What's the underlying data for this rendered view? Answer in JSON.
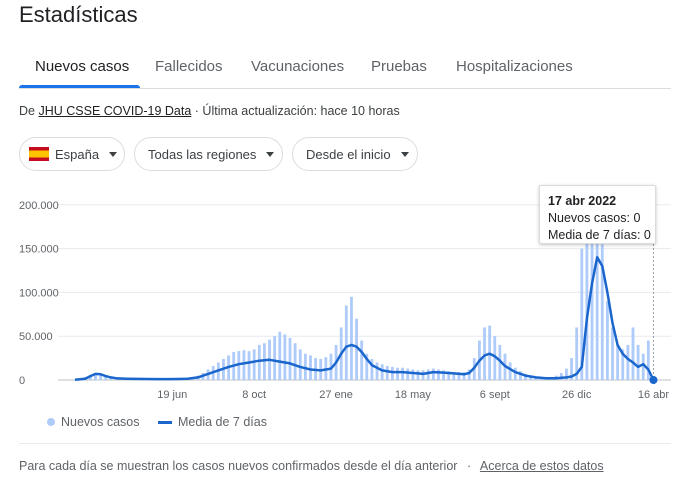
{
  "title": "Estadísticas",
  "tabs": [
    {
      "label": "Nuevos casos",
      "active": true
    },
    {
      "label": "Fallecidos",
      "active": false
    },
    {
      "label": "Vacunaciones",
      "active": false
    },
    {
      "label": "Pruebas",
      "active": false
    },
    {
      "label": "Hospitalizaciones",
      "active": false
    }
  ],
  "source": {
    "prefix": "De",
    "link": "JHU CSSE COVID-19 Data",
    "suffix": "· Última actualización: hace 10 horas"
  },
  "filters": {
    "country": "España",
    "region": "Todas las regiones",
    "range": "Desde el inicio"
  },
  "tooltip": {
    "date": "17 abr 2022",
    "cases": "Nuevos casos: 0",
    "avg": "Media de 7 días: 0"
  },
  "legend": {
    "bars": "Nuevos casos",
    "line": "Media de 7 días"
  },
  "footer": {
    "text": "Para cada día se muestran los casos nuevos confirmados desde el día anterior",
    "sep": "·",
    "link": "Acerca de estos datos"
  },
  "colors": {
    "bars": "#aecbfa",
    "line": "#1a66cc",
    "accent": "#1a73e8"
  },
  "chart_data": {
    "type": "bar",
    "x_ticks": [
      "19 jun",
      "8 oct",
      "27 ene",
      "18 may",
      "6 sept",
      "26 dic",
      "16 abr"
    ],
    "x_tick_weeks": [
      19,
      35,
      51,
      66,
      82,
      98,
      113
    ],
    "y_ticks": [
      "0",
      "50.000",
      "100.000",
      "150.000",
      "200.000"
    ],
    "y_tick_values": [
      0,
      50000,
      100000,
      150000,
      200000
    ],
    "ylim": [
      0,
      210000
    ],
    "x_range_weeks": [
      0,
      113.3
    ],
    "series": [
      {
        "name": "Nuevos casos",
        "kind": "bar",
        "weeks": [
          0,
          1,
          2,
          3,
          4,
          5,
          6,
          7,
          8,
          9,
          10,
          11,
          12,
          13,
          14,
          15,
          16,
          17,
          18,
          19,
          20,
          21,
          22,
          23,
          24,
          25,
          26,
          27,
          28,
          29,
          30,
          31,
          32,
          33,
          34,
          35,
          36,
          37,
          38,
          39,
          40,
          41,
          42,
          43,
          44,
          45,
          46,
          47,
          48,
          49,
          50,
          51,
          52,
          53,
          54,
          55,
          56,
          57,
          58,
          59,
          60,
          61,
          62,
          63,
          64,
          65,
          66,
          67,
          68,
          69,
          70,
          71,
          72,
          73,
          74,
          75,
          76,
          77,
          78,
          79,
          80,
          81,
          82,
          83,
          84,
          85,
          86,
          87,
          88,
          89,
          90,
          91,
          92,
          93,
          94,
          95,
          96,
          97,
          98,
          99,
          100,
          101,
          102,
          103,
          104,
          105,
          106,
          107,
          108,
          109,
          110,
          111,
          112,
          113
        ],
        "values": [
          0,
          1500,
          3500,
          6000,
          8000,
          6500,
          4500,
          3000,
          2000,
          1600,
          1500,
          1400,
          1300,
          1200,
          1000,
          1100,
          900,
          900,
          1000,
          1000,
          1100,
          1300,
          2000,
          3000,
          5000,
          8000,
          12000,
          16000,
          20000,
          24000,
          28000,
          32000,
          33000,
          34000,
          33000,
          35000,
          40000,
          42000,
          46000,
          50000,
          55000,
          52000,
          48000,
          42000,
          35000,
          30000,
          28000,
          25000,
          24000,
          26000,
          30000,
          40000,
          60000,
          85000,
          95000,
          70000,
          45000,
          30000,
          24000,
          20000,
          18000,
          16000,
          15000,
          14000,
          14000,
          13000,
          12000,
          11000,
          11000,
          12000,
          13000,
          12000,
          11000,
          10000,
          9000,
          9000,
          9000,
          12000,
          25000,
          45000,
          60000,
          62000,
          50000,
          40000,
          30000,
          20000,
          14000,
          10000,
          7000,
          5000,
          4000,
          3500,
          3000,
          3500,
          5000,
          8000,
          13000,
          25000,
          60000,
          150000,
          170000,
          165000,
          160000,
          155000,
          90000,
          60000,
          40000,
          35000,
          40000,
          60000,
          40000,
          30000,
          45000,
          0
        ]
      },
      {
        "name": "Media de 7 días",
        "kind": "line",
        "weeks": [
          0,
          2,
          3,
          4,
          5,
          6,
          7,
          8,
          10,
          12,
          14,
          16,
          18,
          20,
          22,
          24,
          26,
          28,
          30,
          32,
          34,
          36,
          38,
          40,
          41,
          42,
          44,
          46,
          48,
          50,
          51,
          52,
          53,
          54,
          55,
          56,
          57,
          58,
          60,
          62,
          64,
          66,
          68,
          70,
          72,
          74,
          76,
          77,
          78,
          79,
          80,
          81,
          82,
          83,
          84,
          86,
          88,
          90,
          92,
          94,
          96,
          97,
          98,
          99,
          100,
          101,
          102,
          103,
          104,
          105,
          106,
          107,
          108,
          109,
          110,
          111,
          112,
          113
        ],
        "values": [
          200,
          1500,
          4500,
          7000,
          6500,
          4500,
          3000,
          2000,
          1500,
          1300,
          1100,
          1000,
          1000,
          1100,
          1500,
          3000,
          7000,
          11000,
          15000,
          18000,
          20000,
          22000,
          23000,
          21000,
          20000,
          19000,
          15000,
          12000,
          11000,
          13000,
          20000,
          30000,
          38000,
          40000,
          38000,
          32000,
          24000,
          17000,
          11000,
          9000,
          9000,
          8000,
          7000,
          9000,
          8500,
          7500,
          6500,
          8000,
          14000,
          22000,
          28000,
          30000,
          27000,
          22000,
          16000,
          9000,
          5000,
          3000,
          2000,
          2000,
          3000,
          4000,
          7000,
          15000,
          70000,
          110000,
          140000,
          130000,
          100000,
          65000,
          40000,
          30000,
          24000,
          20000,
          15000,
          18000,
          12000,
          0
        ]
      }
    ]
  }
}
